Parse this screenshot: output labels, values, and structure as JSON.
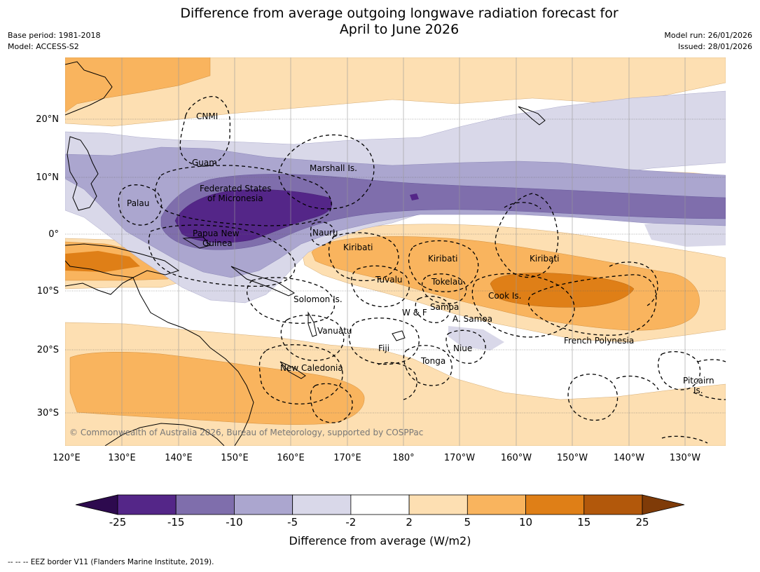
{
  "title_line1": "Difference from average outgoing longwave radiation forecast for",
  "title_line2": "April to June 2026",
  "base_period": "Base period: 1981-2018",
  "model": "Model: ACCESS-S2",
  "model_run": "Model run: 26/01/2026",
  "issued": "Issued: 28/01/2026",
  "copyright": "© Commonwealth of Australia 2026, Bureau of Meteorology, supported by COSPPac",
  "footnote": "--  --  -- EEZ border V11 (Flanders Marine Institute, 2019).",
  "colorbar": {
    "label": "Difference from average (W/m2)",
    "ticks": [
      "-25",
      "-15",
      "-10",
      "-5",
      "-2",
      "2",
      "5",
      "10",
      "15",
      "25"
    ],
    "colors": [
      "#2d0a4e",
      "#542688",
      "#7f6eac",
      "#aba6cf",
      "#d9d8e9",
      "#ffffff",
      "#fddfb2",
      "#f9b45e",
      "#df7f17",
      "#b2580b",
      "#7f3b08"
    ]
  },
  "x_axis_labels": [
    "120°E",
    "130°E",
    "140°E",
    "150°E",
    "160°E",
    "170°E",
    "180°",
    "170°W",
    "160°W",
    "150°W",
    "140°W",
    "130°W"
  ],
  "y_axis_labels": [
    "20°N",
    "10°N",
    "0°",
    "10°S",
    "20°S",
    "30°S"
  ],
  "regions": [
    {
      "name": "cnmi",
      "text": "CNMI"
    },
    {
      "name": "guam",
      "text": "Guam"
    },
    {
      "name": "marshall",
      "text": "Marshall Is."
    },
    {
      "name": "fsm1",
      "text": "Federated States"
    },
    {
      "name": "fsm2",
      "text": "of Micronesia"
    },
    {
      "name": "palau",
      "text": "Palau"
    },
    {
      "name": "png1",
      "text": "Papua New"
    },
    {
      "name": "png2",
      "text": "Guinea"
    },
    {
      "name": "nauru",
      "text": "Nauru"
    },
    {
      "name": "kiribati-w",
      "text": "Kiribati"
    },
    {
      "name": "kiribati-c",
      "text": "Kiribati"
    },
    {
      "name": "kiribati-e",
      "text": "Kiribati"
    },
    {
      "name": "tuvalu",
      "text": "Tuvalu"
    },
    {
      "name": "tokelau",
      "text": "Tokelau"
    },
    {
      "name": "cook",
      "text": "Cook Is."
    },
    {
      "name": "solomon",
      "text": "Solomon Is."
    },
    {
      "name": "wallis",
      "text": "W & F"
    },
    {
      "name": "samoa",
      "text": "Samoa"
    },
    {
      "name": "asamoa",
      "text": "A. Samoa"
    },
    {
      "name": "vanuatu",
      "text": "Vanuatu"
    },
    {
      "name": "fiji",
      "text": "Fiji"
    },
    {
      "name": "niue",
      "text": "Niue"
    },
    {
      "name": "frenchpoly",
      "text": "French Polynesia"
    },
    {
      "name": "tonga",
      "text": "Tonga"
    },
    {
      "name": "newcal",
      "text": "New Caledonia"
    },
    {
      "name": "pitcairn1",
      "text": "Pitcairn"
    },
    {
      "name": "pitcairn2",
      "text": "Is."
    }
  ]
}
